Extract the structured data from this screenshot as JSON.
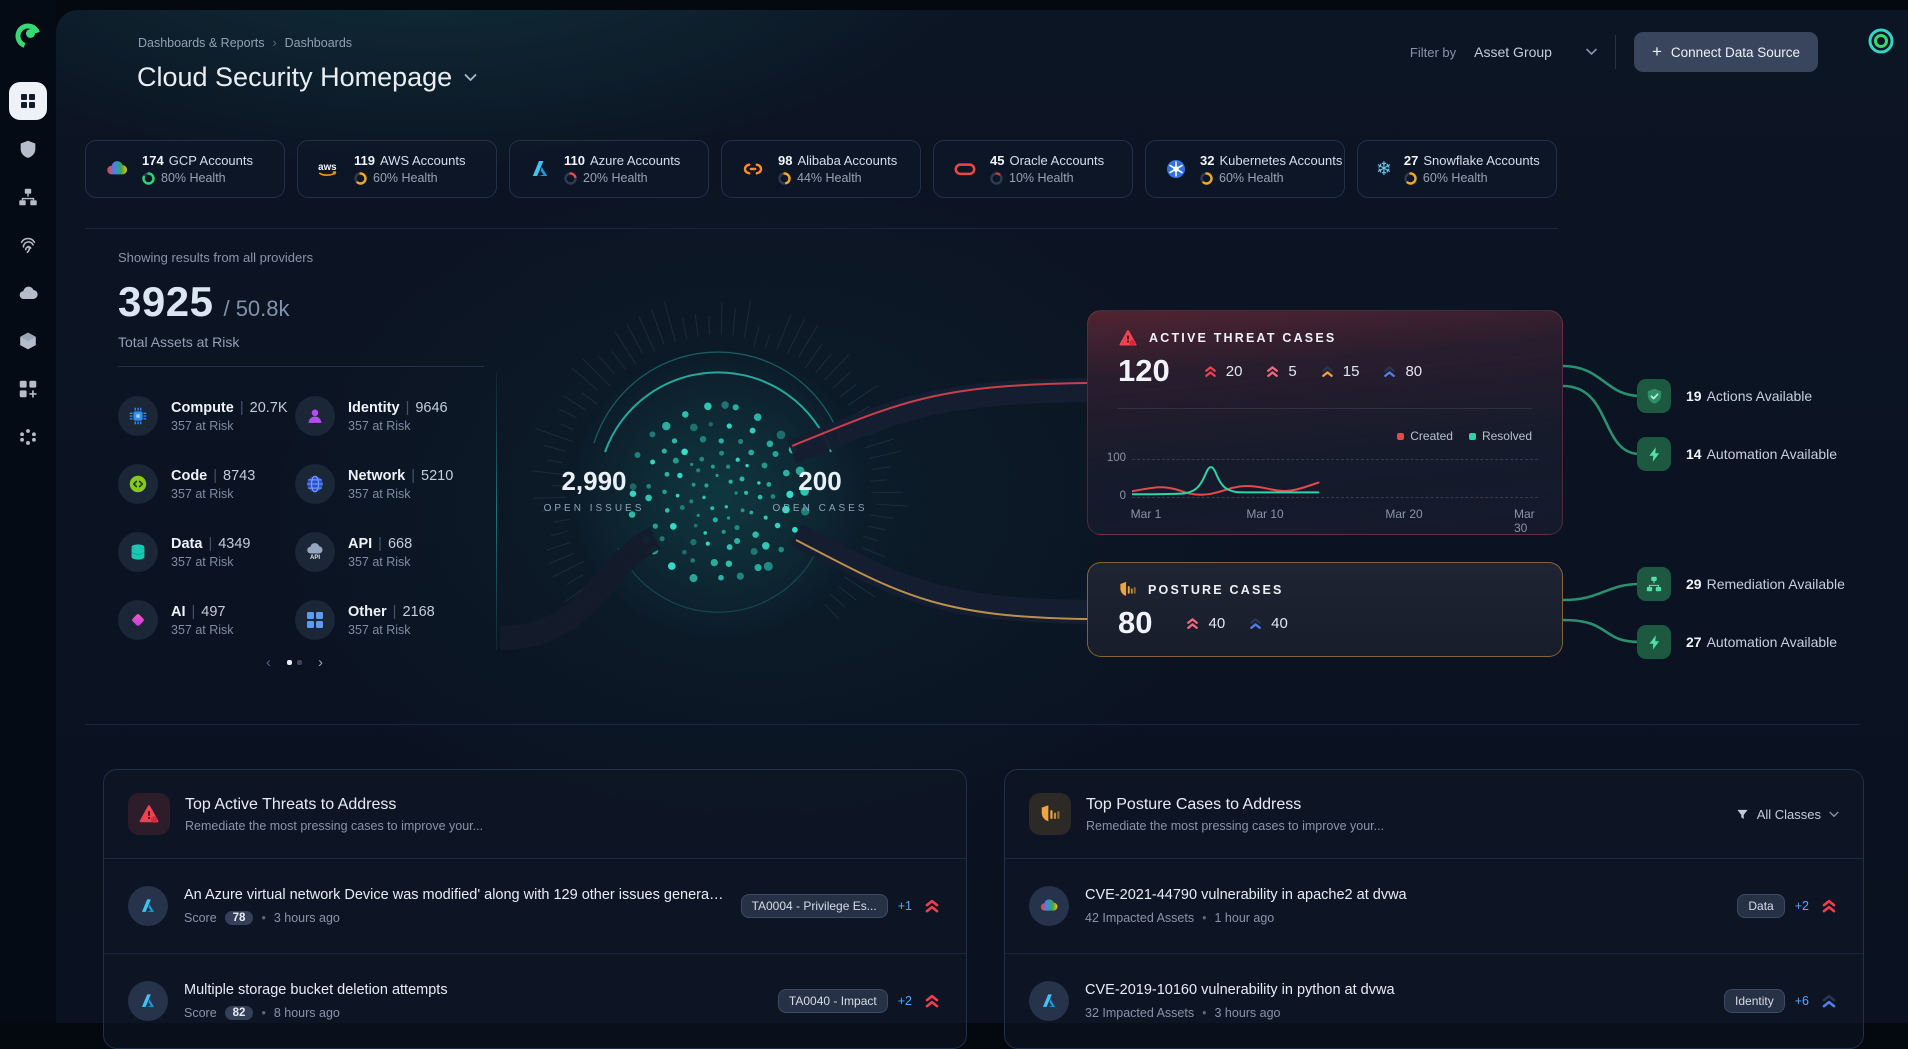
{
  "ui": {
    "dot": "•"
  },
  "colors": {
    "accent_teal": "#2dd4bf",
    "green": "#2dd475",
    "amber": "#f5a623",
    "red": "#e5484d",
    "blue": "#58a6ff",
    "sev_critical": "#f03e4d",
    "sev_high": "#f2697c",
    "sev_medium": "#e8a33d",
    "sev_low": "#4f80e8"
  },
  "sidebar": {
    "logo": "orca-logo",
    "icons": [
      "dashboard-grid",
      "shield",
      "sitemap",
      "fingerprint",
      "cloud",
      "cube",
      "grid-plus",
      "marketplace"
    ]
  },
  "header": {
    "breadcrumb": [
      "Dashboards & Reports",
      "Dashboards"
    ],
    "breadcrumb_sep": "›",
    "title": "Cloud Security Homepage",
    "filter_label": "Filter by",
    "filter_value": "Asset Group",
    "connect_plus": "+",
    "connect_label": "Connect Data Source"
  },
  "accounts": [
    {
      "count": "174",
      "label": "GCP Accounts",
      "health": "80% Health",
      "health_pct": 80,
      "color": "#2dd475",
      "provider": "gcp"
    },
    {
      "count": "119",
      "label": "AWS Accounts",
      "health": "60% Health",
      "health_pct": 60,
      "color": "#f5a623",
      "provider": "aws"
    },
    {
      "count": "110",
      "label": "Azure Accounts",
      "health": "20% Health",
      "health_pct": 20,
      "color": "#e5484d",
      "provider": "azure"
    },
    {
      "count": "98",
      "label": "Alibaba Accounts",
      "health": "44% Health",
      "health_pct": 44,
      "color": "#f5a623",
      "provider": "alibaba"
    },
    {
      "count": "45",
      "label": "Oracle Accounts",
      "health": "10% Health",
      "health_pct": 10,
      "color": "#c23a3a",
      "provider": "oracle"
    },
    {
      "count": "32",
      "label": "Kubernetes Accounts",
      "health": "60% Health",
      "health_pct": 60,
      "color": "#f5a623",
      "provider": "kubernetes"
    },
    {
      "count": "27",
      "label": "Snowflake Accounts",
      "health": "60% Health",
      "health_pct": 60,
      "color": "#f5a623",
      "provider": "snowflake"
    }
  ],
  "hero": {
    "showing": "Showing results from all providers",
    "at_risk": "3925",
    "total_sep": "/",
    "total": "50.8k",
    "caption": "Total Assets at Risk",
    "sep": "|",
    "categories": [
      {
        "name": "Compute",
        "count": "20.7K",
        "sub": "357 at Risk",
        "icon": "cpu"
      },
      {
        "name": "Identity",
        "count": "9646",
        "sub": "357 at Risk",
        "icon": "person"
      },
      {
        "name": "Code",
        "count": "8743",
        "sub": "357 at Risk",
        "icon": "code"
      },
      {
        "name": "Network",
        "count": "5210",
        "sub": "357 at Risk",
        "icon": "globe"
      },
      {
        "name": "Data",
        "count": "4349",
        "sub": "357 at Risk",
        "icon": "database"
      },
      {
        "name": "API",
        "count": "668",
        "sub": "357 at Risk",
        "icon": "api-cloud"
      },
      {
        "name": "AI",
        "count": "497",
        "sub": "357 at Risk",
        "icon": "diamond"
      },
      {
        "name": "Other",
        "count": "2168",
        "sub": "357 at Risk",
        "icon": "grid"
      }
    ],
    "open_issues": {
      "value": "2,990",
      "label": "OPEN ISSUES"
    },
    "open_cases": {
      "value": "200",
      "label": "OPEN CASES"
    },
    "pagination": {
      "prev": "‹",
      "next": "›"
    }
  },
  "threat_card": {
    "title": "ACTIVE THREAT CASES",
    "value": "120",
    "stats": [
      {
        "value": "20",
        "severity": "critical"
      },
      {
        "value": "5",
        "severity": "high"
      },
      {
        "value": "15",
        "severity": "medium"
      },
      {
        "value": "80",
        "severity": "low"
      }
    ],
    "legend": [
      {
        "label": "Created",
        "color": "#e5484d"
      },
      {
        "label": "Resolved",
        "color": "#2dd4a7"
      }
    ],
    "chart_data": {
      "type": "line",
      "xlim": [
        1,
        30
      ],
      "ylim": [
        0,
        100
      ],
      "x_ticks": [
        "Mar 1",
        "Mar 10",
        "Mar 20",
        "Mar 30"
      ],
      "y_ticks": [
        "100",
        "0"
      ],
      "grid": "dashed-horizontal",
      "legend_position": "top-right",
      "series": [
        {
          "name": "Created",
          "color": "#e5484d",
          "x": [
            1,
            2,
            3,
            4,
            5,
            6,
            7,
            8,
            9,
            10,
            11,
            12,
            13,
            14
          ],
          "y": [
            15,
            22,
            27,
            22,
            8,
            5,
            12,
            25,
            30,
            26,
            17,
            15,
            25,
            38
          ]
        },
        {
          "name": "Resolved",
          "color": "#2dd4a7",
          "x": [
            1,
            2,
            3,
            4,
            5,
            5.8,
            6.5,
            7.2,
            8,
            9,
            10,
            11,
            12,
            13,
            14
          ],
          "y": [
            7,
            7,
            8,
            8,
            10,
            30,
            95,
            30,
            13,
            12,
            12,
            12,
            12,
            12,
            12
          ]
        }
      ]
    }
  },
  "posture_card": {
    "title": "POSTURE CASES",
    "value": "80",
    "stats": [
      {
        "value": "40",
        "severity": "high"
      },
      {
        "value": "40",
        "severity": "low"
      }
    ]
  },
  "flow": {
    "actions": [
      {
        "count": "19",
        "label": "Actions Available",
        "icon": "shield-check"
      },
      {
        "count": "14",
        "label": "Automation Available",
        "icon": "bolt"
      },
      {
        "count": "29",
        "label": "Remediation Available",
        "icon": "sitemap"
      },
      {
        "count": "27",
        "label": "Automation Available",
        "icon": "bolt"
      }
    ]
  },
  "bottom_left": {
    "title": "Top Active Threats to Address",
    "subtitle": "Remediate the most pressing cases to improve your...",
    "rows": [
      {
        "provider": "azure",
        "title": "An Azure virtual network Device was modified' along with 129 other issues generate...",
        "score_label": "Score",
        "score": "78",
        "time": "3 hours ago",
        "badge": "TA0004 - Privilege Es...",
        "extra": "+1",
        "severity": "critical"
      },
      {
        "provider": "azure",
        "title": "Multiple storage bucket deletion attempts",
        "score_label": "Score",
        "score": "82",
        "time": "8 hours ago",
        "badge": "TA0040 - Impact",
        "extra": "+2",
        "severity": "critical"
      }
    ]
  },
  "bottom_right": {
    "title": "Top Posture Cases to Address",
    "subtitle": "Remediate the most pressing cases to improve your...",
    "filter_label": "All Classes",
    "rows": [
      {
        "provider": "gcp",
        "title": "CVE-2021-44790 vulnerability in apache2 at dvwa",
        "meta": "42 Impacted Assets",
        "time": "1 hour ago",
        "badge": "Data",
        "extra": "+2",
        "severity": "critical"
      },
      {
        "provider": "azure",
        "title": "CVE-2019-10160 vulnerability in python at dvwa",
        "meta": "32 Impacted Assets",
        "time": "3 hours ago",
        "badge": "Identity",
        "extra": "+6",
        "severity": "low"
      }
    ]
  }
}
